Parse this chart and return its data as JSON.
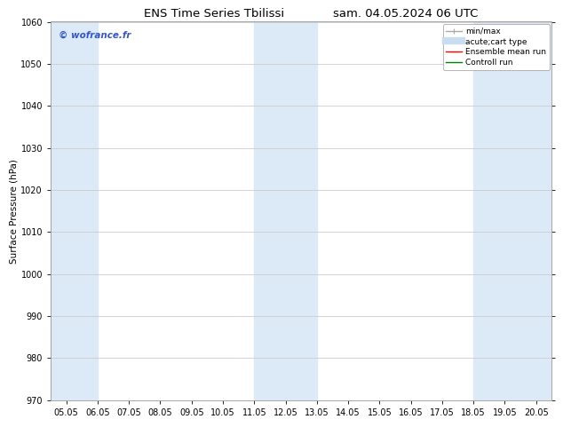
{
  "title_left": "ENS Time Series Tbilissi",
  "title_right": "sam. 04.05.2024 06 UTC",
  "ylabel": "Surface Pressure (hPa)",
  "ylim": [
    970,
    1060
  ],
  "yticks": [
    970,
    980,
    990,
    1000,
    1010,
    1020,
    1030,
    1040,
    1050,
    1060
  ],
  "xlim": [
    4.5,
    20.5
  ],
  "xtick_labels": [
    "05.05",
    "06.05",
    "07.05",
    "08.05",
    "09.05",
    "10.05",
    "11.05",
    "12.05",
    "13.05",
    "14.05",
    "15.05",
    "16.05",
    "17.05",
    "18.05",
    "19.05",
    "20.05"
  ],
  "xtick_positions": [
    5,
    6,
    7,
    8,
    9,
    10,
    11,
    12,
    13,
    14,
    15,
    16,
    17,
    18,
    19,
    20
  ],
  "watermark": "© wofrance.fr",
  "watermark_color": "#3355cc",
  "bg_color": "#ffffff",
  "plot_bg_color": "#ffffff",
  "shaded_bands": [
    {
      "xmin": 4.5,
      "xmax": 6.0,
      "color": "#dce9f7"
    },
    {
      "xmin": 11.0,
      "xmax": 13.0,
      "color": "#dce9f7"
    },
    {
      "xmin": 18.0,
      "xmax": 20.5,
      "color": "#dce9f7"
    }
  ],
  "legend_items": [
    {
      "label": "min/max",
      "color": "#aaaaaa",
      "lw": 1.0
    },
    {
      "label": "acute;cart type",
      "color": "#c8ddf0",
      "lw": 6
    },
    {
      "label": "Ensemble mean run",
      "color": "#ff0000",
      "lw": 1.0
    },
    {
      "label": "Controll run",
      "color": "#008000",
      "lw": 1.0
    }
  ],
  "grid_color": "#cccccc",
  "spine_color": "#999999",
  "title_fontsize": 9.5,
  "tick_fontsize": 7,
  "ylabel_fontsize": 7.5,
  "legend_fontsize": 6.5,
  "watermark_fontsize": 7.5
}
